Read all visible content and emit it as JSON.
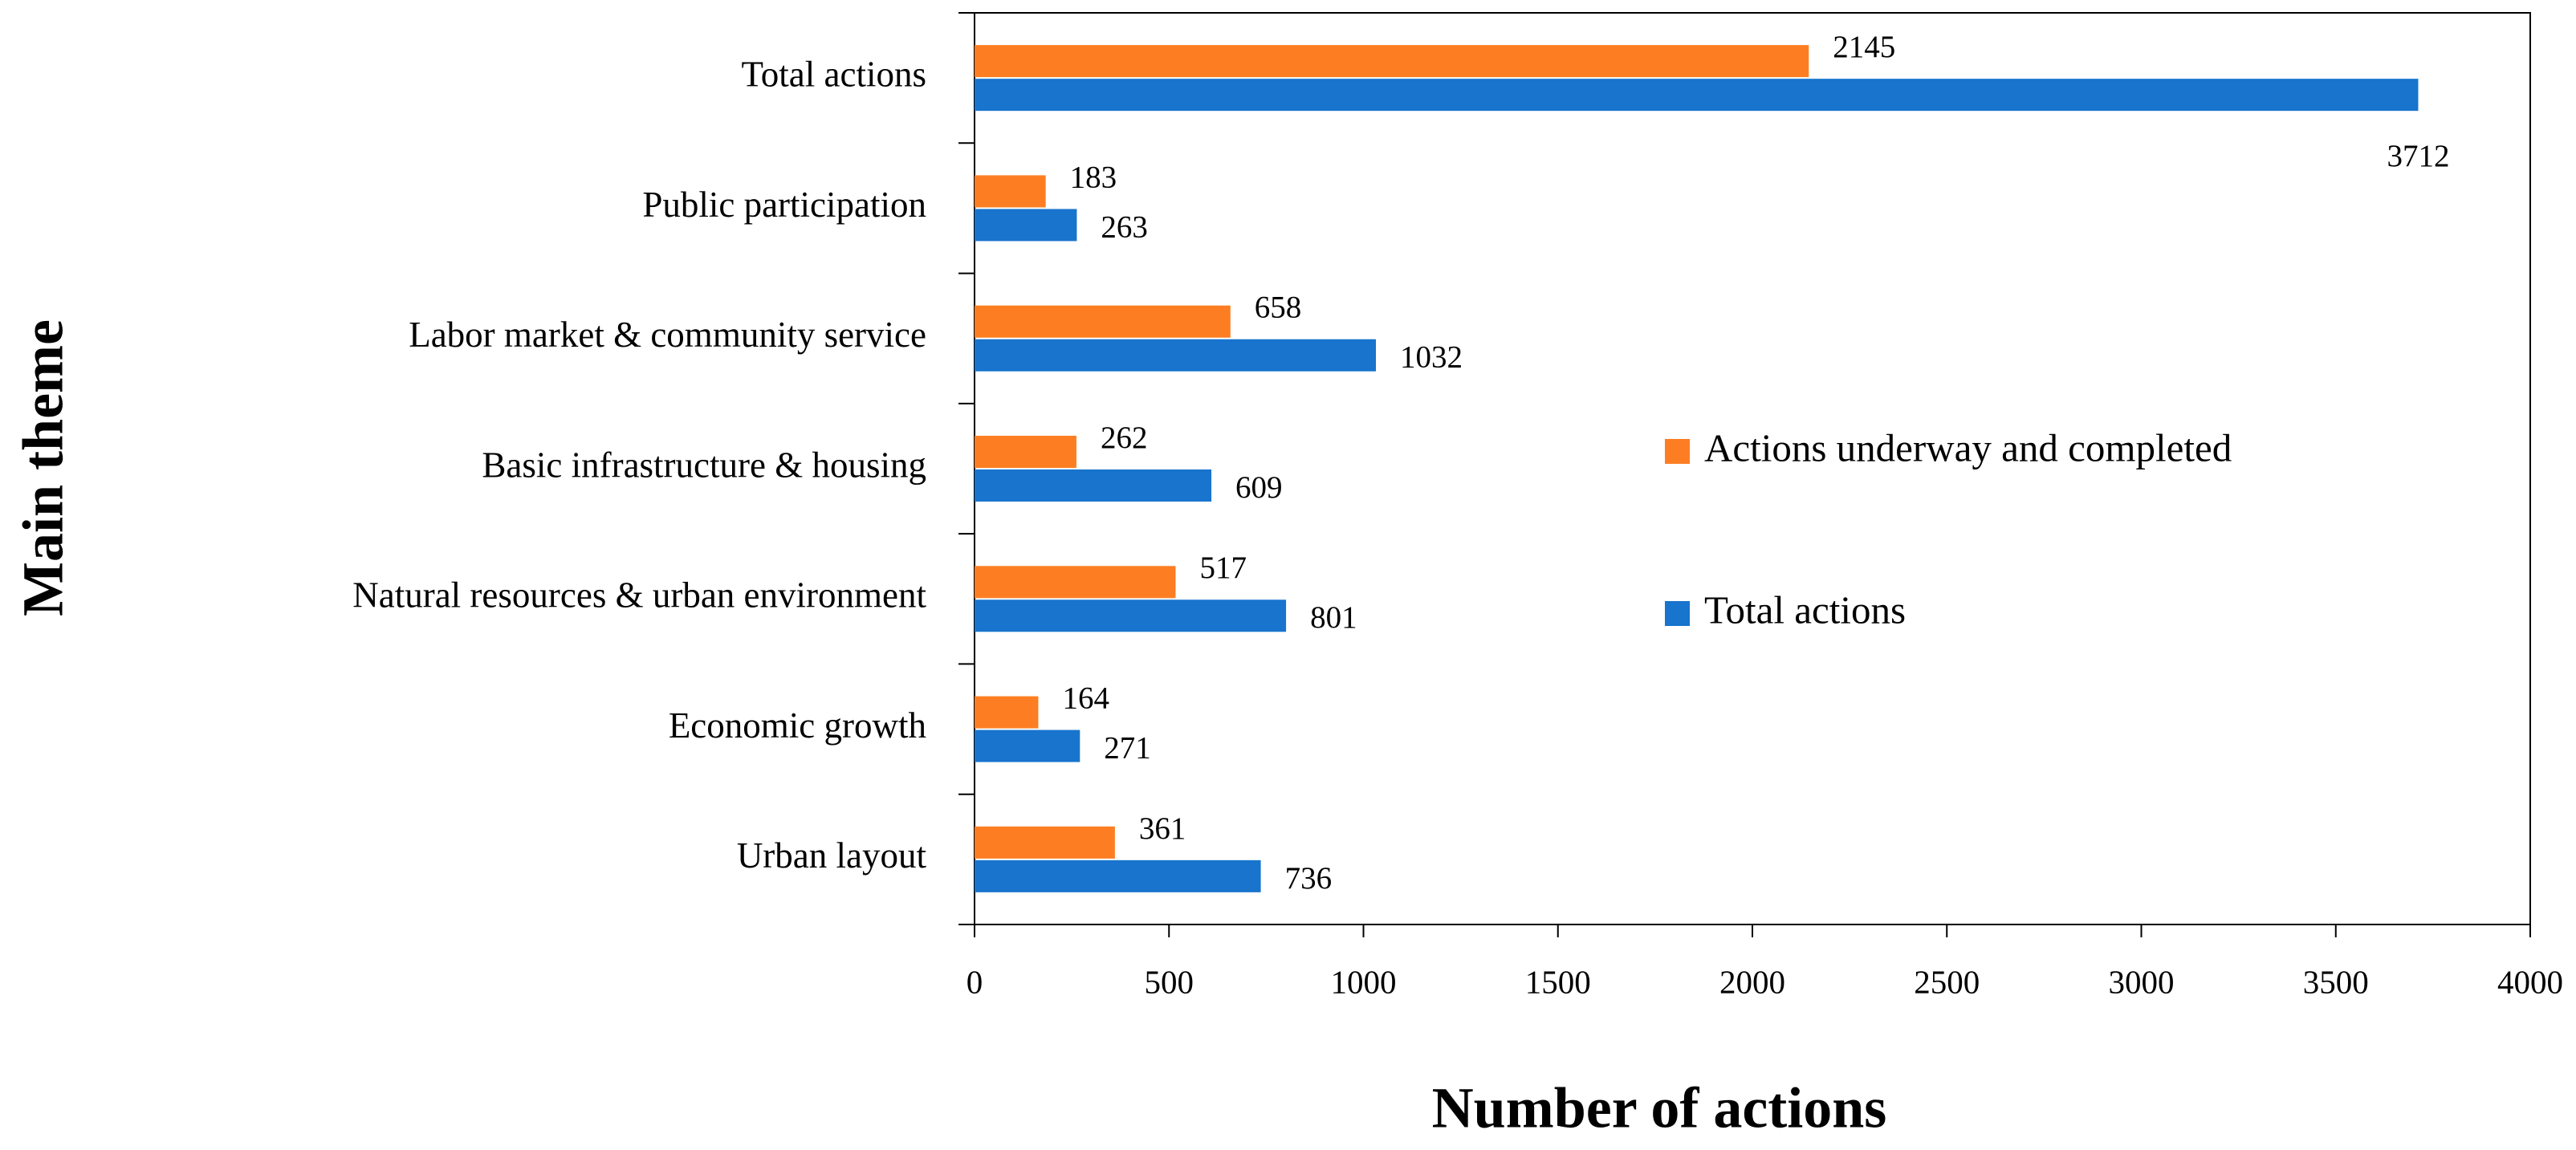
{
  "chart_data": {
    "type": "hbar",
    "x_label": "Number of actions",
    "y_label": "Main theme",
    "categories": [
      "Total actions",
      "Public participation",
      "Labor market & community service",
      "Basic infrastructure & housing",
      "Natural resources & urban environment",
      "Economic growth",
      "Urban layout"
    ],
    "series": [
      {
        "name": "Actions underway and completed",
        "color": "#fd7e22",
        "values": [
          2145,
          183,
          658,
          262,
          517,
          164,
          361
        ]
      },
      {
        "name": "Total actions",
        "color": "#1874cd",
        "values": [
          3712,
          263,
          1032,
          609,
          801,
          271,
          736
        ]
      }
    ],
    "xlim": [
      0,
      4000
    ],
    "xticks": [
      0,
      500,
      1000,
      1500,
      2000,
      2500,
      3000,
      3500,
      4000
    ],
    "grid": false,
    "legend": "center-right"
  }
}
